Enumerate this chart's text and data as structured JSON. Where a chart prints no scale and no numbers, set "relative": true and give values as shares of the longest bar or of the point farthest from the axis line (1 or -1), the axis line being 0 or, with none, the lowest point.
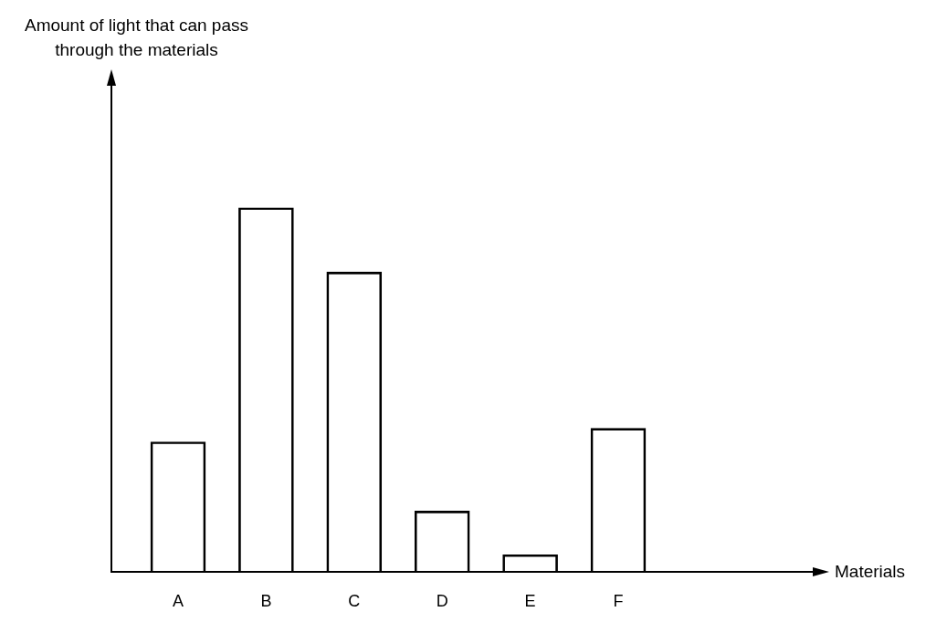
{
  "chart_data": {
    "type": "bar",
    "relative": true,
    "annotations": [
      "Amount of light that can pass through the materials",
      "Materials"
    ],
    "categories": [
      "A",
      "B",
      "C",
      "D",
      "E",
      "F"
    ],
    "values": [
      0.357,
      1,
      0.823,
      0.167,
      0.047,
      0.394
    ],
    "color": "#000000",
    "grid": false,
    "legend": false
  }
}
